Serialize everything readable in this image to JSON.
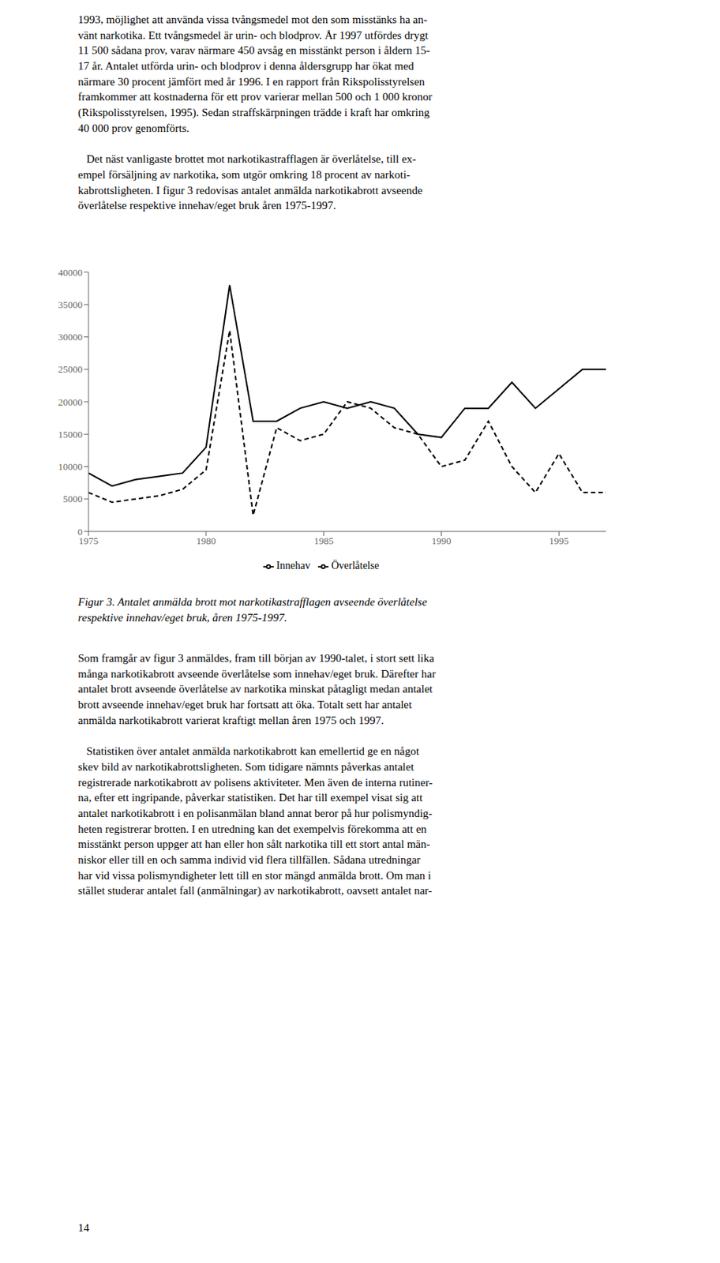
{
  "top_text": "1993, möjlighet att använda vissa tvångsmedel mot den som misstänks ha an-\nvänt narkotika. Ett tvångsmedel är urin- och blodprov. År 1997 utfördes drygt\n11 500 sådana prov, varav närmare 450 avsåg en misstänkt person i åldern 15-\n17 år. Antalet utförda urin- och blodprov i denna åldersgrupp har ökat med\nnärmare 30 procent jämfört med år 1996. I en rapport från Rikspolisstyrelsen\nframkommer att kostnaderna för ett prov varierar mellan 500 och 1 000 kronor\n(Rikspolisstyrelsen, 1995). Sedan straffskärpningen trädde i kraft har omkring\n40 000 prov genomförts.\n\n   Det näst vanligaste brottet mot narkotikastrafflagen är överlåtelse, till ex-\nempel försäljning av narkotika, som utgör omkring 18 procent av narkoti-\nkabrottsligheten. I figur 3 redovisas antalet anmälda narkotikabrott avseende\növerlåtelse respektive innehav/eget bruk åren 1975-1997.",
  "caption": "Figur 3. Antalet anmälda brott mot narkotikastrafflagen avseende överlåtelse\nrespektive innehav/eget bruk, åren 1975-1997.",
  "bottom_text": "Som framgår av figur 3 anmäldes, fram till början av 1990-talet, i stort sett lika\nmånga narkotikabrott avseende överlåtelse som innehav/eget bruk. Därefter har\nantalet brott avseende överlåtelse av narkotika minskat påtagligt medan antalet\nbrott avseende innehav/eget bruk har fortsatt att öka. Totalt sett har antalet\nanmälda narkotikabrott varierat kraftigt mellan åren 1975 och 1997.\n\n   Statistiken över antalet anmälda narkotikabrott kan emellertid ge en något\nskev bild av narkotikabrottsligheten. Som tidigare nämnts påverkas antalet\nregistrerade narkotikabrott av polisens aktiviteter. Men även de interna rutiner-\nna, efter ett ingripande, påverkar statistiken. Det har till exempel visat sig att\nantalet narkotikabrott i en polisanmälan bland annat beror på hur polismyndig-\nheten registrerar brotten. I en utredning kan det exempelvis förekomma att en\nmisstänkt person uppger att han eller hon sålt narkotika till ett stort antal män-\nniskor eller till en och samma individ vid flera tillfällen. Sådana utredningar\nhar vid vissa polismyndigheter lett till en stor mängd anmälda brott. Om man i\nstället studerar antalet fall (anmälningar) av narkotikabrott, oavsett antalet nar-",
  "page_number": "14",
  "chart_data": {
    "type": "line",
    "x": [
      1975,
      1976,
      1977,
      1978,
      1979,
      1980,
      1981,
      1982,
      1983,
      1984,
      1985,
      1986,
      1987,
      1988,
      1989,
      1990,
      1991,
      1992,
      1993,
      1994,
      1995,
      1996,
      1997
    ],
    "series": [
      {
        "name": "Innehav",
        "color": "#000000",
        "line_style": "solid",
        "values": [
          9000,
          7000,
          8000,
          8500,
          9000,
          13000,
          38000,
          17000,
          17000,
          19000,
          20000,
          19000,
          20000,
          19000,
          15000,
          14500,
          19000,
          19000,
          23000,
          19000,
          22000,
          25000,
          25000
        ]
      },
      {
        "name": "Överlåtelse",
        "color": "#000000",
        "line_style": "dashed",
        "values": [
          6000,
          4500,
          5000,
          5500,
          6500,
          9500,
          31000,
          2500,
          16000,
          14000,
          15000,
          20000,
          19000,
          16000,
          15000,
          10000,
          11000,
          17000,
          10000,
          6000,
          12000,
          6000,
          6000
        ]
      }
    ],
    "xlim": [
      1975,
      1997
    ],
    "xticks": [
      1975,
      1980,
      1985,
      1990,
      1995
    ],
    "ylim": [
      0,
      40000
    ],
    "yticks": [
      0,
      5000,
      10000,
      15000,
      20000,
      25000,
      30000,
      35000,
      40000
    ],
    "grid": false,
    "legend": "bottom"
  }
}
